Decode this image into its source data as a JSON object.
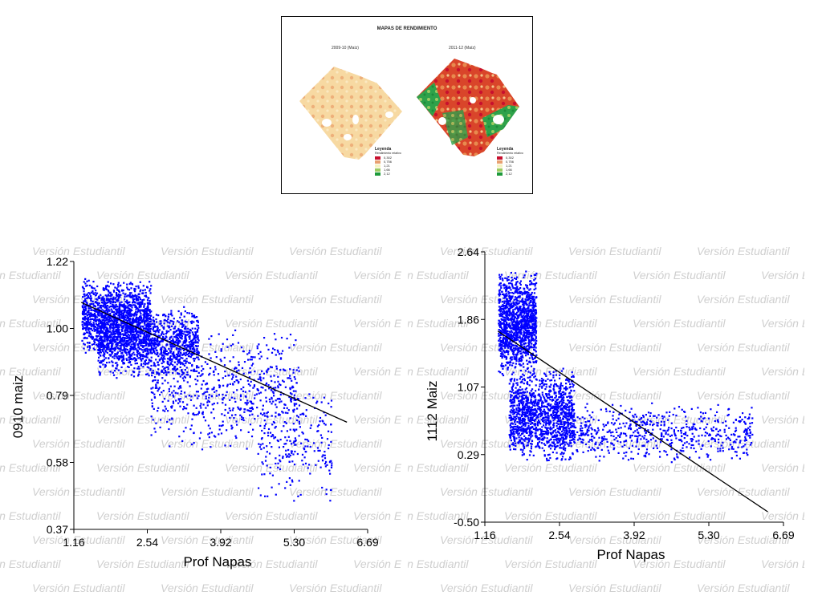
{
  "map_panel": {
    "title": "MAPAS DE RENDIMIENTO",
    "maps": [
      {
        "subtitle": "2009-10 (Maíz)"
      },
      {
        "subtitle": "2011-12 (Maíz)"
      }
    ],
    "legend": {
      "title": "Leyenda",
      "subtitle": "Rendimiento relativo",
      "items": [
        {
          "label": "0,302",
          "color": "#c8102e"
        },
        {
          "label": "0,756",
          "color": "#e8a070"
        },
        {
          "label": "1,21",
          "color": "#f7f2c0"
        },
        {
          "label": "1,66",
          "color": "#9ccb62"
        },
        {
          "label": "2,12",
          "color": "#1e9a3a"
        }
      ]
    }
  },
  "watermark": "Versión Estudiantil",
  "point_color": "#0000ff",
  "chart_data": [
    {
      "type": "scatter",
      "title": "",
      "xlabel": "Prof Napas",
      "ylabel": "0910 maiz",
      "xlim": [
        1.16,
        6.69
      ],
      "ylim": [
        0.37,
        1.22
      ],
      "x_ticks": [
        "1.16",
        "2.54",
        "3.92",
        "5.30",
        "6.69"
      ],
      "y_ticks": [
        "0.37",
        "0.58",
        "0.79",
        "1.00",
        "1.22"
      ],
      "trend_line": {
        "x": [
          1.3,
          6.3
        ],
        "y": [
          1.09,
          0.71
        ]
      },
      "clusters": [
        {
          "x": [
            1.3,
            2.6
          ],
          "y": [
            0.92,
            1.17
          ],
          "density": "high"
        },
        {
          "x": [
            1.6,
            3.5
          ],
          "y": [
            0.85,
            1.08
          ],
          "density": "high"
        },
        {
          "x": [
            2.6,
            5.4
          ],
          "y": [
            0.62,
            1.02
          ],
          "density": "medium"
        },
        {
          "x": [
            4.6,
            6.0
          ],
          "y": [
            0.45,
            0.85
          ],
          "density": "low"
        }
      ]
    },
    {
      "type": "scatter",
      "title": "",
      "xlabel": "Prof Napas",
      "ylabel": "1112 Maiz",
      "xlim": [
        1.16,
        6.69
      ],
      "ylim": [
        -0.5,
        2.64
      ],
      "x_ticks": [
        "1.16",
        "2.54",
        "3.92",
        "5.30",
        "6.69"
      ],
      "y_ticks": [
        "-0.50",
        "0.29",
        "1.07",
        "1.86",
        "2.64"
      ],
      "trend_line": {
        "x": [
          1.4,
          6.4
        ],
        "y": [
          1.72,
          -0.38
        ]
      },
      "clusters": [
        {
          "x": [
            1.4,
            2.1
          ],
          "y": [
            1.2,
            2.45
          ],
          "density": "high"
        },
        {
          "x": [
            1.6,
            2.8
          ],
          "y": [
            0.2,
            1.3
          ],
          "density": "high"
        },
        {
          "x": [
            2.5,
            6.1
          ],
          "y": [
            0.2,
            0.9
          ],
          "density": "medium"
        }
      ]
    }
  ]
}
